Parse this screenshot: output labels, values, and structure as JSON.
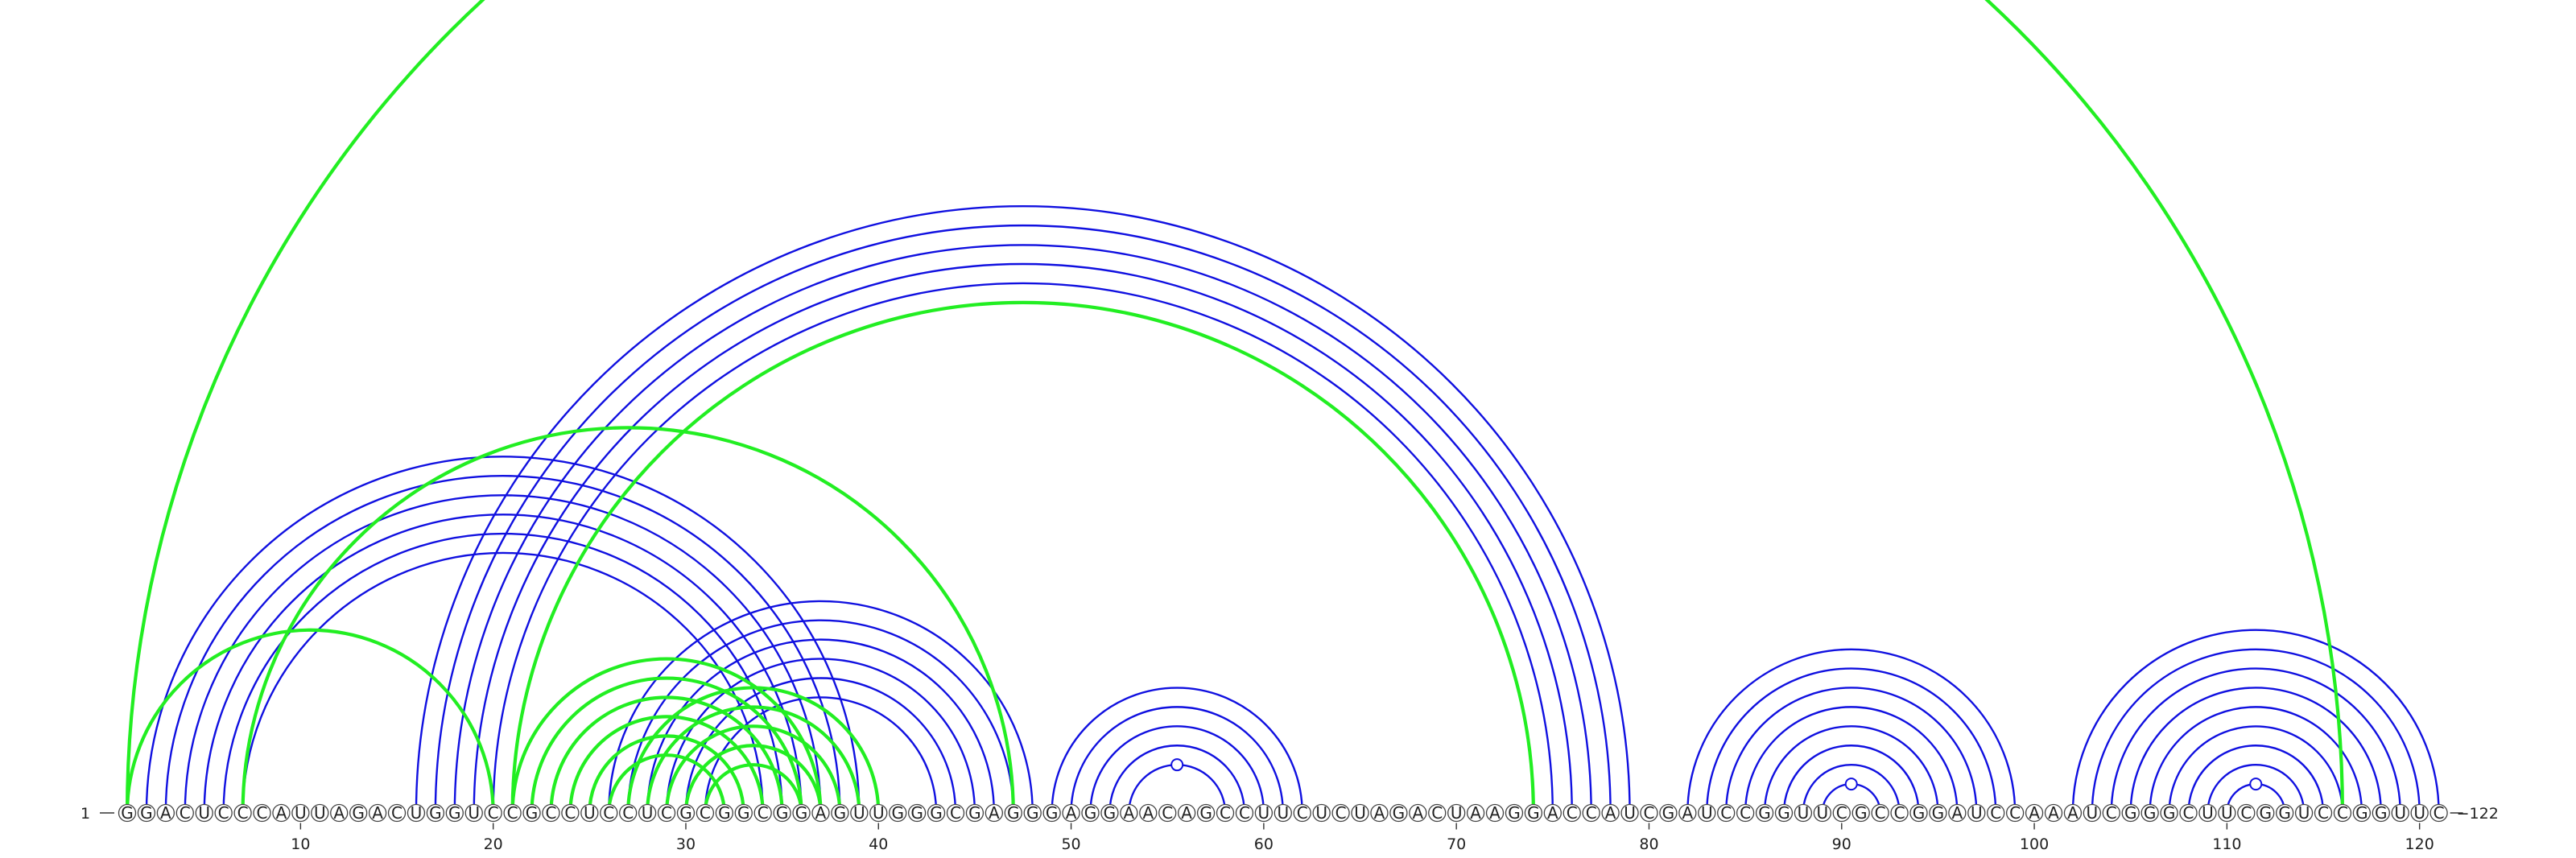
{
  "sequence": "GGACUCCCAUUAGACUGGUCCGCCUCCUCGCGGCGGAGUUGGGCGAGGGAGGAACAGCCUUCUCUAGACUAAGGACCAUCGAUCCGGUUCGCCGGAUCCAAAUCGGGCUUCGGUCCGGUUC",
  "start_label": "1",
  "end_label": "122",
  "ticks": [
    "10",
    "20",
    "30",
    "40",
    "50",
    "60",
    "70",
    "80",
    "90",
    "100",
    "110",
    "120"
  ],
  "colors": {
    "secondary_arc": "#1010e0",
    "tertiary_arc": "#22ee22",
    "node_stroke": "#444444",
    "text": "#222222"
  },
  "arcs": {
    "blue": [
      [
        2,
        39
      ],
      [
        3,
        38
      ],
      [
        4,
        37
      ],
      [
        5,
        36
      ],
      [
        6,
        35
      ],
      [
        7,
        34
      ],
      [
        16,
        79
      ],
      [
        17,
        78
      ],
      [
        18,
        77
      ],
      [
        19,
        76
      ],
      [
        20,
        75
      ],
      [
        26,
        48
      ],
      [
        27,
        47
      ],
      [
        28,
        46
      ],
      [
        29,
        45
      ],
      [
        30,
        44
      ],
      [
        31,
        43
      ],
      [
        49,
        62
      ],
      [
        50,
        61
      ],
      [
        51,
        60
      ],
      [
        52,
        59
      ],
      [
        53,
        58
      ],
      [
        82,
        99
      ],
      [
        83,
        98
      ],
      [
        84,
        97
      ],
      [
        85,
        96
      ],
      [
        86,
        95
      ],
      [
        87,
        94
      ],
      [
        88,
        93
      ],
      [
        89,
        92
      ],
      [
        102,
        121
      ],
      [
        103,
        120
      ],
      [
        104,
        119
      ],
      [
        105,
        118
      ],
      [
        106,
        117
      ],
      [
        107,
        116
      ],
      [
        108,
        115
      ],
      [
        109,
        114
      ],
      [
        110,
        113
      ]
    ],
    "green": [
      [
        1,
        116
      ],
      [
        1,
        20
      ],
      [
        7,
        47
      ],
      [
        21,
        74
      ],
      [
        21,
        37
      ],
      [
        22,
        36
      ],
      [
        23,
        35
      ],
      [
        24,
        34
      ],
      [
        25,
        33
      ],
      [
        26,
        32
      ],
      [
        27,
        40
      ],
      [
        28,
        39
      ],
      [
        29,
        38
      ],
      [
        30,
        37
      ],
      [
        31,
        36
      ]
    ]
  },
  "loop_markers": [
    56,
    91,
    111
  ]
}
